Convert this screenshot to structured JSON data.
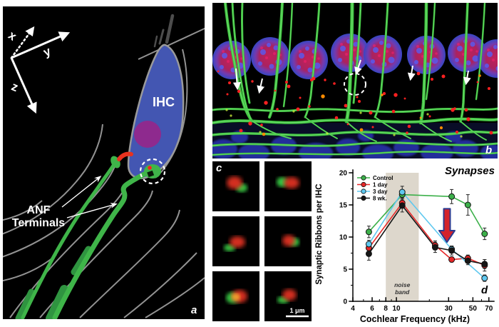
{
  "figure": {
    "panels": {
      "a": {
        "label": "a",
        "axis_x_label": "x",
        "axis_y_label": "y",
        "axis_z_label": "z",
        "cell_label": "IHC",
        "annotation_line1": "ANF",
        "annotation_line2": "Terminals",
        "colors": {
          "background": "#000000",
          "ihc_body": "#4356b2",
          "nucleus": "#8e2a8e",
          "fiber_green": "#3fb549",
          "fiber_green_dark": "#2f9440",
          "outline_gray": "#929292",
          "ribbon_red": "#e8321f"
        }
      },
      "b": {
        "label": "b",
        "colors": {
          "background": "#000000",
          "fibers_green": "#3ec43e",
          "nuclei_magenta": "#b02458",
          "puncta_red": "#ff2020",
          "basal_cells_blue": "#2633a8"
        }
      },
      "c": {
        "label": "c",
        "scale_bar_label": "1 μm",
        "colors": {
          "ribbon_red": "#e03020",
          "terminal_green": "#35c040"
        }
      },
      "d": {
        "label": "d"
      }
    }
  },
  "chart_data": {
    "type": "line",
    "title": "Synapses",
    "xlabel": "Cochlear Frequency (kHz)",
    "ylabel": "Synaptic Ribbons per IHC",
    "x_scale": "log",
    "xlim": [
      4,
      78
    ],
    "ylim": [
      0,
      20
    ],
    "x_ticks": [
      4,
      6,
      8,
      10,
      30,
      50,
      70
    ],
    "x_minor_ticks": [
      5,
      7,
      9,
      20,
      40,
      60
    ],
    "y_ticks": [
      0,
      5,
      10,
      15,
      20
    ],
    "y_minor_ticks": [
      2.5,
      7.5,
      12.5,
      17.5
    ],
    "grid": false,
    "legend_position": "upper-left",
    "noise_band": {
      "label": "noise band",
      "x_from": 8,
      "x_to": 16,
      "color": "#ddd7cc",
      "label_x": 11.3
    },
    "series": [
      {
        "name": "Control",
        "color": "#3cb04a",
        "x": [
          5.6,
          11.3,
          32,
          45,
          64
        ],
        "y": [
          10.8,
          16.6,
          16.3,
          15.0,
          10.5
        ],
        "err": [
          0.9,
          0.7,
          1.1,
          1.6,
          0.9
        ]
      },
      {
        "name": "1 day",
        "color": "#e62728",
        "x": [
          5.6,
          11.3,
          22.6,
          32,
          45,
          64
        ],
        "y": [
          8.3,
          15.3,
          8.7,
          6.5,
          6.7,
          5.6
        ],
        "err": [
          0.5,
          0.8,
          0.7,
          0.4,
          0.5,
          0.9
        ]
      },
      {
        "name": "3 day",
        "color": "#5fc8ef",
        "x": [
          5.6,
          11.3,
          32,
          64
        ],
        "y": [
          8.9,
          17.0,
          8.1,
          3.6
        ],
        "err": [
          0.6,
          0.9,
          0.5,
          0.5
        ]
      },
      {
        "name": "8 wk.",
        "color": "#161616",
        "x": [
          5.6,
          11.3,
          22.6,
          32,
          45,
          64
        ],
        "y": [
          7.4,
          14.9,
          8.4,
          7.9,
          6.3,
          5.8
        ],
        "err": [
          1.0,
          1.0,
          0.8,
          0.7,
          0.6,
          0.7
        ]
      }
    ],
    "annotation_arrow": {
      "x": 29,
      "y_top": 14.4,
      "y_mid": 11.0,
      "y_tip": 9.2,
      "fill": "#d4232b",
      "stroke": "#2b3a8f"
    }
  }
}
